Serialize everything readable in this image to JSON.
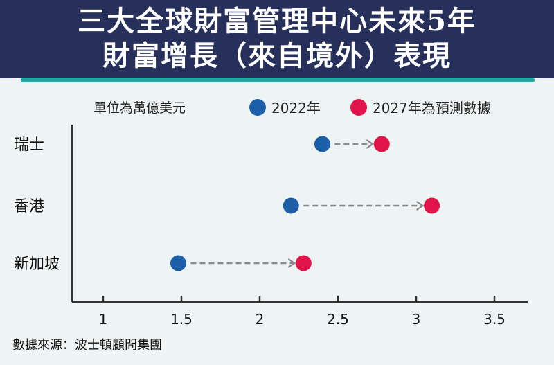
{
  "header": {
    "title_line1": "三大全球財富管理中心未來5年",
    "title_line2": "財富增長（來自境外）表現"
  },
  "legend": {
    "unit": "單位為萬億美元",
    "items": [
      {
        "label": "2022年",
        "color": "#1c5ea8"
      },
      {
        "label": "2027年為預測數據",
        "color": "#e0144a"
      }
    ]
  },
  "source": "數據來源：波士頓顧問集團",
  "chart_data": {
    "type": "dumbbell",
    "title": "三大全球財富管理中心未來5年財富增長（來自境外）表現",
    "unit": "單位為萬億美元",
    "categories": [
      "瑞士",
      "香港",
      "新加坡"
    ],
    "series": [
      {
        "name": "2022年",
        "color": "#1c5ea8",
        "values": [
          2.4,
          2.2,
          1.48
        ]
      },
      {
        "name": "2027年為預測數據",
        "color": "#e0144a",
        "values": [
          2.78,
          3.1,
          2.28
        ]
      }
    ],
    "xlim": [
      0.8,
      3.7
    ],
    "xticks": [
      1,
      1.5,
      2,
      2.5,
      3,
      3.5
    ],
    "xtick_labels": [
      "1",
      "1.5",
      "2",
      "2.5",
      "3",
      "3.5"
    ],
    "grid": false,
    "legend_position": "top"
  }
}
